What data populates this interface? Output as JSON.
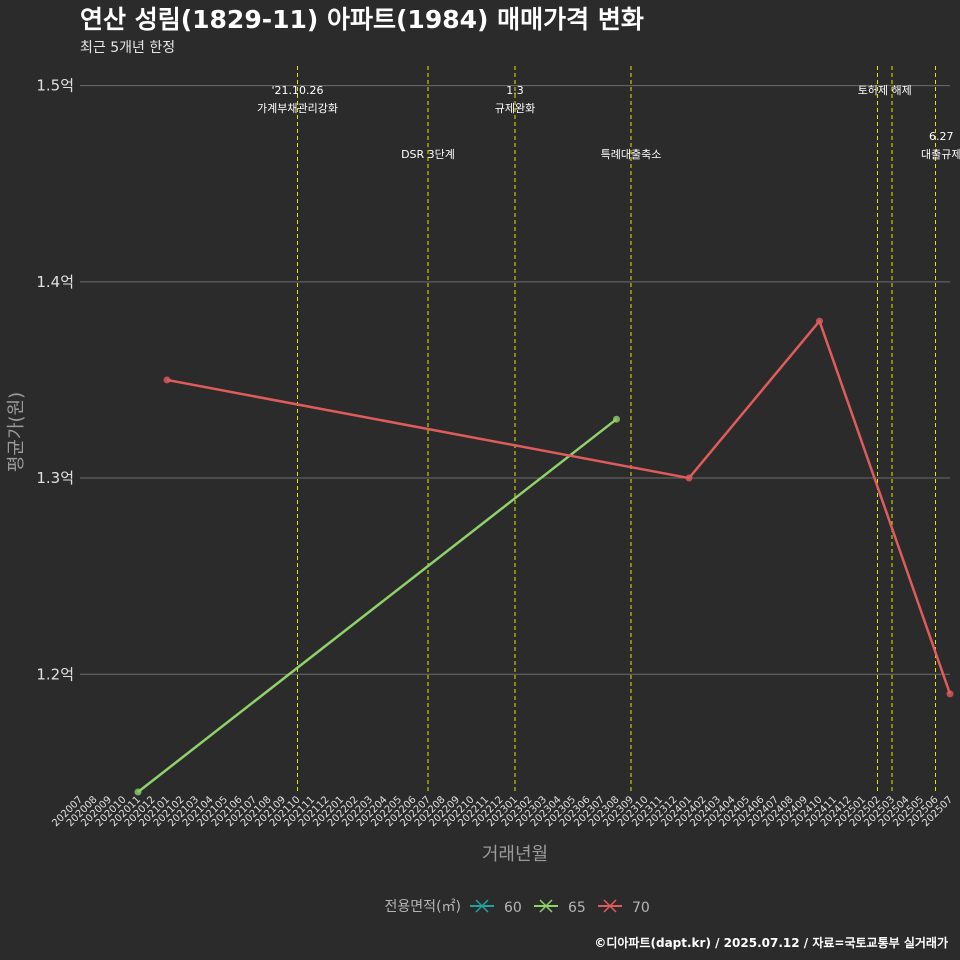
{
  "chart_data": {
    "type": "line",
    "title": "연산 성림(1829-11) 아파트(1984) 매매가격 변화",
    "subtitle": "최근 5개년 한정",
    "xlabel": "거래년월",
    "ylabel": "평균가(원)",
    "ylim": [
      1.14,
      1.51
    ],
    "yticks": [
      {
        "value": 1.2,
        "label": "1.2억"
      },
      {
        "value": 1.3,
        "label": "1.3억"
      },
      {
        "value": 1.4,
        "label": "1.4억"
      },
      {
        "value": 1.5,
        "label": "1.5억"
      }
    ],
    "categories": [
      "202007",
      "202008",
      "202009",
      "202010",
      "202011",
      "202012",
      "202101",
      "202102",
      "202103",
      "202104",
      "202105",
      "202106",
      "202107",
      "202108",
      "202109",
      "202110",
      "202111",
      "202112",
      "202201",
      "202202",
      "202203",
      "202204",
      "202205",
      "202206",
      "202207",
      "202208",
      "202209",
      "202210",
      "202211",
      "202212",
      "202301",
      "202302",
      "202303",
      "202304",
      "202305",
      "202306",
      "202307",
      "202308",
      "202309",
      "202310",
      "202311",
      "202312",
      "202401",
      "202402",
      "202403",
      "202404",
      "202405",
      "202406",
      "202407",
      "202408",
      "202409",
      "202410",
      "202411",
      "202412",
      "202501",
      "202502",
      "202503",
      "202504",
      "202505",
      "202506",
      "202507"
    ],
    "series": [
      {
        "name": "60",
        "color": "#20a39e",
        "points": []
      },
      {
        "name": "65",
        "color": "#8fd16b",
        "points": [
          {
            "x": "202011",
            "y": 1.14
          },
          {
            "x": "202308",
            "y": 1.33
          }
        ]
      },
      {
        "name": "70",
        "color": "#e05c5c",
        "points": [
          {
            "x": "202101",
            "y": 1.35
          },
          {
            "x": "202401",
            "y": 1.3
          },
          {
            "x": "202410",
            "y": 1.38
          },
          {
            "x": "202507",
            "y": 1.19
          }
        ]
      }
    ],
    "events": [
      {
        "x": "202110",
        "lines": [
          "'21.10.26",
          "가계부채관리강화"
        ],
        "level": 0
      },
      {
        "x": "202207",
        "lines": [
          "DSR 3단계"
        ],
        "level": 2
      },
      {
        "x": "202301",
        "lines": [
          "1.3",
          "규제완화"
        ],
        "level": 0
      },
      {
        "x": "202309",
        "lines": [
          "특례대출축소"
        ],
        "level": 2
      },
      {
        "x": "202502",
        "lines": [],
        "level": 0
      },
      {
        "x": "202503",
        "lines": [
          "토허제 해제"
        ],
        "level": 0,
        "label_shift": -0.5
      },
      {
        "x": "202506",
        "lines": [
          "6.27",
          "대출규제"
        ],
        "level": 1,
        "label_shift": 0.4
      }
    ],
    "event_line_color": "#e5e500",
    "legend": {
      "title": "전용면적(㎡)",
      "position": "bottom"
    },
    "grid": true
  },
  "caption": "©디아파트(dapt.kr) / 2025.07.12 / 자료=국토교통부 실거래가"
}
